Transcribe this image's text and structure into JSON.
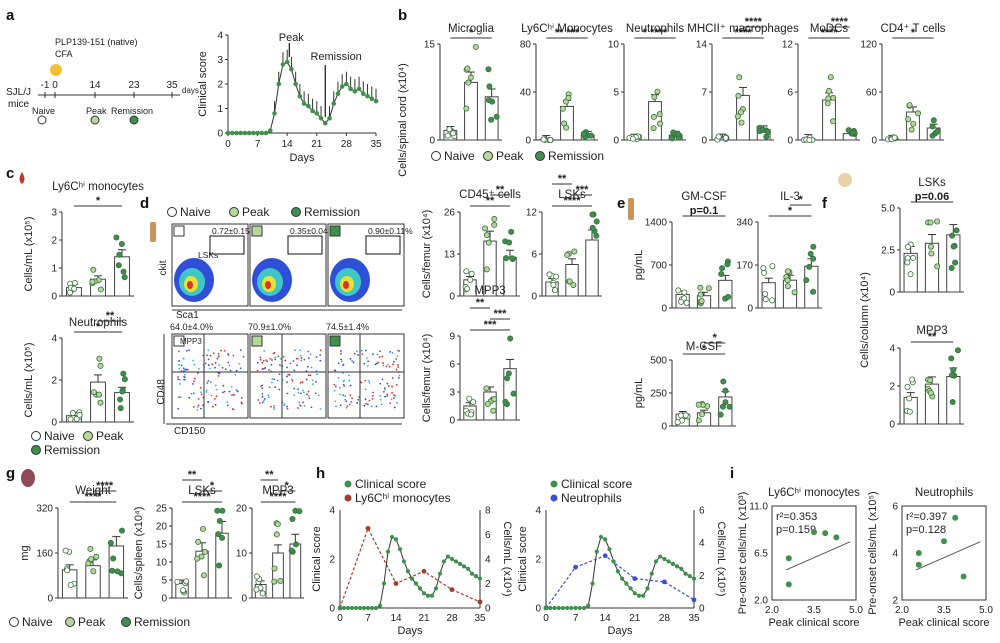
{
  "panel_letters": [
    "a",
    "b",
    "c",
    "d",
    "e",
    "f",
    "g",
    "h",
    "i"
  ],
  "groups": {
    "naive": "Naive",
    "peak": "Peak",
    "remission": "Remission"
  },
  "colors": {
    "naive": "#ffffff",
    "peak": "#b5d89a",
    "remission": "#3f8f4d",
    "red": "#a43b2b",
    "blue": "#3d4fd0",
    "orange": "#e07a2b"
  },
  "panel_a": {
    "timeline": {
      "strain": "SJL/J",
      "strain2": "mice",
      "antigen": "PLP139-151 (native)",
      "adjuvant": "CFA",
      "ticks": [
        "-1",
        "0",
        "14",
        "23",
        "35"
      ],
      "unit": "days",
      "labels": [
        "Naive",
        "Peak",
        "Remission"
      ]
    },
    "chart_data": {
      "type": "line",
      "xlabel": "Days",
      "ylabel": "Clinical score",
      "xlim": [
        0,
        35
      ],
      "ylim": [
        0,
        4
      ],
      "xticks": [
        "0",
        "7",
        "14",
        "21",
        "28",
        "35"
      ],
      "yticks": [
        "0",
        "1",
        "2",
        "3",
        "4"
      ],
      "annotations": [
        "Peak",
        "Remission"
      ],
      "x": [
        0,
        1,
        2,
        3,
        4,
        5,
        6,
        7,
        8,
        9,
        10,
        11,
        12,
        13,
        14,
        15,
        16,
        17,
        18,
        19,
        20,
        21,
        22,
        23,
        24,
        25,
        26,
        27,
        28,
        29,
        30,
        31,
        32,
        33,
        34,
        35
      ],
      "y": [
        0,
        0,
        0,
        0,
        0,
        0,
        0,
        0,
        0,
        0,
        0.1,
        0.8,
        2.0,
        2.8,
        2.9,
        2.6,
        2.0,
        1.5,
        1.2,
        1.1,
        0.9,
        0.8,
        0.6,
        0.4,
        0.6,
        1.2,
        1.6,
        1.9,
        2.0,
        1.8,
        1.7,
        1.8,
        1.6,
        1.5,
        1.4,
        1.3
      ]
    }
  },
  "panel_b": {
    "ylabel": "Cells/spinal cord (x10⁴)",
    "legend": [
      "Naive",
      "Peak",
      "Remission"
    ],
    "charts": [
      {
        "title": "Microglia",
        "ylim": [
          0,
          20
        ],
        "yticks": [
          "0",
          "15"
        ],
        "values": [
          2.0,
          12.0,
          9.0
        ],
        "stats": [
          "*"
        ]
      },
      {
        "title": "Ly6Cʰⁱ Monocytes",
        "ylim": [
          0,
          80
        ],
        "yticks": [
          "0",
          "40",
          "80"
        ],
        "values": [
          0.5,
          28,
          4
        ],
        "stats": [
          "** ***"
        ]
      },
      {
        "title": "Neutrophils",
        "ylim": [
          0,
          10
        ],
        "yticks": [
          "0",
          "5",
          "10"
        ],
        "values": [
          0.2,
          4.0,
          0.5
        ],
        "stats": [
          "* ****"
        ]
      },
      {
        "title": "MHCII⁺ macrophages",
        "ylim": [
          0,
          14
        ],
        "yticks": [
          "0",
          "7",
          "14"
        ],
        "values": [
          0.3,
          6.5,
          1.5
        ],
        "stats": [
          "****",
          "****"
        ]
      },
      {
        "title": "MoDCs",
        "ylim": [
          0,
          12
        ],
        "yticks": [
          "0",
          "6",
          "12"
        ],
        "values": [
          0.2,
          5.0,
          0.8
        ],
        "stats": [
          "****",
          "****"
        ]
      },
      {
        "title": "CD4⁺ T cells",
        "ylim": [
          0,
          120
        ],
        "yticks": [
          "0",
          "60",
          "120"
        ],
        "values": [
          1,
          35,
          15
        ],
        "stats": [
          "*"
        ]
      }
    ]
  },
  "panel_c": {
    "charts": [
      {
        "title": "Ly6Cʰⁱ monocytes",
        "ylabel": "Cells/mL (x10⁵)",
        "ylim": [
          0,
          3
        ],
        "yticks": [
          "0",
          "1",
          "2",
          "3"
        ],
        "values": [
          0.3,
          0.6,
          1.4
        ],
        "stats": [
          "*"
        ]
      },
      {
        "title": "Neutrophils",
        "ylabel": "Cells/mL (x10⁵)",
        "ylim": [
          0,
          4
        ],
        "yticks": [
          "0",
          "2",
          "4"
        ],
        "values": [
          0.3,
          1.9,
          1.4
        ],
        "stats": [
          "*",
          "**"
        ]
      }
    ],
    "legend": [
      "Naive",
      "Peak",
      "Remission"
    ]
  },
  "panel_d": {
    "legend": [
      "Naive",
      "Peak",
      "Remission"
    ],
    "flow_top": {
      "xlabel": "Sca1",
      "ylabel": "ckit",
      "gate": "LSKs",
      "percents": [
        "0.72±0.15%",
        "0.35±0.04%",
        "0.90±0.11%"
      ]
    },
    "flow_bottom": {
      "xlabel": "CD150",
      "ylabel": "CD48",
      "gate": "MPP3",
      "percents": [
        "64.0±4.0%",
        "70.9±1.0%",
        "74.5±1.4%"
      ]
    },
    "charts": [
      {
        "title": "CD45⁺ cells",
        "ylabel": "Cells/femur (x10⁴)",
        "ylim": [
          0,
          26
        ],
        "yticks": [
          "0",
          "13",
          "26"
        ],
        "values": [
          5,
          17,
          12
        ],
        "stats": [
          "**",
          "**"
        ]
      },
      {
        "title": "LSKs",
        "ylim": [
          0,
          12
        ],
        "yticks": [
          "0",
          "6",
          "12"
        ],
        "values": [
          2,
          4.5,
          8
        ],
        "stats": [
          "****",
          "***",
          "**"
        ]
      },
      {
        "title": "MPP3",
        "ylabel": "Cells/femur (x10⁴)",
        "ylim": [
          0,
          9
        ],
        "yticks": [
          "0",
          "3",
          "6",
          "9"
        ],
        "values": [
          1.5,
          3,
          5.5
        ],
        "stats": [
          "***",
          "***",
          "**"
        ]
      }
    ]
  },
  "panel_e": {
    "ylabel": "pg/mL",
    "charts": [
      {
        "title": "GM-CSF",
        "ylim": [
          0,
          1400
        ],
        "yticks": [
          "0",
          "700",
          "1400"
        ],
        "values": [
          220,
          200,
          450
        ],
        "stats": [
          "p=0.1"
        ]
      },
      {
        "title": "IL-3",
        "ylim": [
          0,
          340
        ],
        "yticks": [
          "0",
          "170",
          "340"
        ],
        "values": [
          100,
          110,
          165
        ],
        "stats": [
          "*",
          "*"
        ]
      },
      {
        "title": "M-CSF",
        "ylim": [
          0,
          500
        ],
        "yticks": [
          "0",
          "250",
          "500"
        ],
        "values": [
          90,
          100,
          220
        ],
        "stats": [
          "*",
          "*"
        ]
      }
    ]
  },
  "panel_f": {
    "ylabel": "Cells/column (x10⁴)",
    "charts": [
      {
        "title": "LSKs",
        "ylim": [
          0,
          5
        ],
        "yticks": [
          "0",
          "2.5",
          "5.0"
        ],
        "values": [
          2.3,
          2.9,
          3.4
        ],
        "stats": [
          "p=0.06"
        ]
      },
      {
        "title": "MPP3",
        "ylim": [
          0,
          4
        ],
        "yticks": [
          "0",
          "2",
          "4"
        ],
        "values": [
          1.4,
          2.1,
          2.5
        ],
        "stats": [
          "**"
        ]
      }
    ]
  },
  "panel_g": {
    "legend": [
      "Naive",
      "Peak",
      "Remission"
    ],
    "charts": [
      {
        "title": "Weight",
        "ylabel": "mg",
        "ylim": [
          0,
          320
        ],
        "yticks": [
          "0",
          "160",
          "320"
        ],
        "values": [
          100,
          115,
          185
        ],
        "stats": [
          "****",
          "****"
        ]
      },
      {
        "title": "LSKs",
        "ylabel": "Cells/spleen (x10⁴)",
        "ylim": [
          0,
          25
        ],
        "yticks": [
          "0",
          "5",
          "10",
          "15",
          "20",
          "25"
        ],
        "values": [
          4,
          13,
          18
        ],
        "stats": [
          "****",
          "*",
          "**"
        ]
      },
      {
        "title": "MPP3",
        "ylim": [
          0,
          20
        ],
        "yticks": [
          "0",
          "10",
          "20"
        ],
        "values": [
          3,
          10,
          12
        ],
        "stats": [
          "****",
          "*",
          "**"
        ]
      }
    ]
  },
  "panel_h": {
    "charts": [
      {
        "legend": [
          "Clinical score",
          "Ly6Cʰⁱ monocytes"
        ],
        "ylabel": "Clinical score",
        "y2label": "Cells/mL (x10⁴)",
        "xlabel": "Days",
        "xticks": [
          "0",
          "7",
          "14",
          "21",
          "28",
          "35"
        ],
        "yticks": [
          "0",
          "2",
          "4"
        ],
        "y2ticks": [
          "0",
          "2",
          "4",
          "6",
          "8"
        ]
      },
      {
        "legend": [
          "Clinical score",
          "Neutrophils"
        ],
        "ylabel": "Clinical score",
        "y2label": "Cells/mL (x10⁵)",
        "xlabel": "Days",
        "xticks": [
          "0",
          "7",
          "14",
          "21",
          "28",
          "35"
        ],
        "yticks": [
          "0",
          "2",
          "4"
        ],
        "y2ticks": [
          "0",
          "2",
          "4",
          "6"
        ]
      }
    ]
  },
  "panel_i": {
    "charts": [
      {
        "title": "Ly6Cʰⁱ monocytes",
        "ylabel": "Pre-onset cells/mL (x10³)",
        "xlabel": "Peak clinical score",
        "r2": "r²=0.353",
        "p": "p=0.159",
        "xticks": [
          "2.0",
          "3.5",
          "5.0"
        ],
        "yticks": [
          "2.0",
          "6.5",
          "11.0"
        ],
        "x": [
          2.6,
          2.6,
          3.5,
          3.9,
          4.3
        ],
        "y": [
          3.5,
          6.0,
          8.5,
          8.4,
          8.0
        ]
      },
      {
        "title": "Neutrophils",
        "ylabel": "Pre-onset cells/mL (x10⁵)",
        "xlabel": "Peak clinical score",
        "r2": "r²=0.397",
        "p": "p=0.128",
        "xticks": [
          "2.0",
          "3.5",
          "5.0"
        ],
        "yticks": [
          "2",
          "4",
          "6"
        ],
        "x": [
          2.6,
          2.6,
          3.5,
          3.9,
          4.2
        ],
        "y": [
          3.5,
          4.0,
          4.5,
          5.5,
          3.0
        ]
      }
    ]
  }
}
